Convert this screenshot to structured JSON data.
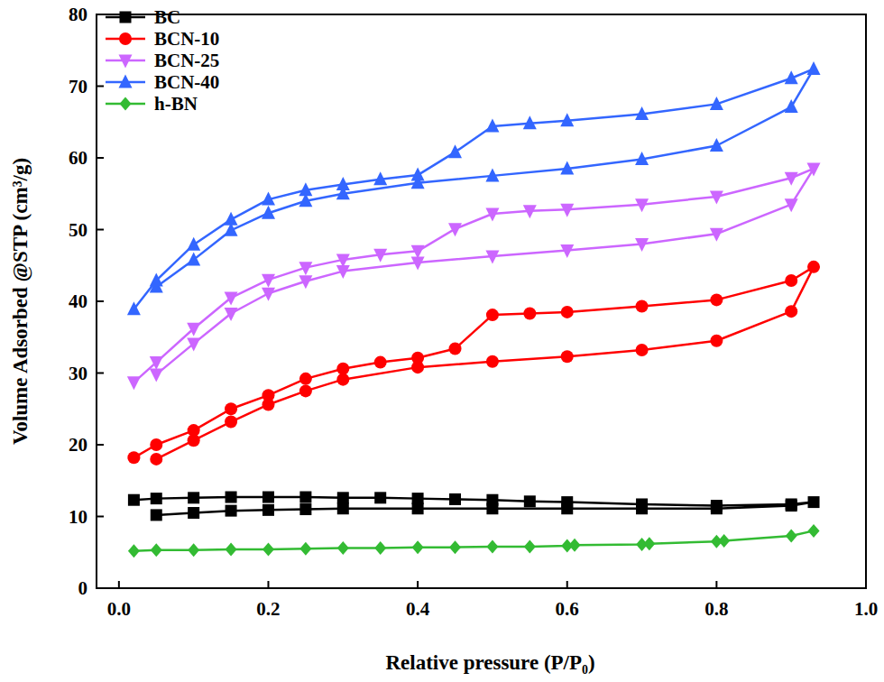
{
  "chart_data": {
    "type": "line",
    "x_label": "Relative pressure (P/P₀)",
    "y_label": "Volume Adsorbed @STP (cm³/g)",
    "xlim": [
      -0.03,
      1.0
    ],
    "ylim": [
      0,
      80
    ],
    "xticks": [
      {
        "value": 0.0,
        "label": "0.0"
      },
      0.2,
      0.4,
      0.6,
      0.8,
      {
        "value": 1.0,
        "label": "1.0"
      }
    ],
    "yticks": [
      0,
      10,
      20,
      30,
      40,
      50,
      60,
      70,
      80
    ],
    "grid": false,
    "legend": "upper left",
    "series": [
      {
        "name": "BC",
        "color": "#000000",
        "marker": "square",
        "x": [
          0.05,
          0.1,
          0.15,
          0.2,
          0.25,
          0.3,
          0.4,
          0.5,
          0.6,
          0.7,
          0.8,
          0.9,
          0.93,
          0.9,
          0.8,
          0.7,
          0.6,
          0.55,
          0.5,
          0.45,
          0.4,
          0.35,
          0.3,
          0.25,
          0.2,
          0.15,
          0.1,
          0.05,
          0.02
        ],
        "values": [
          10.2,
          10.5,
          10.8,
          10.9,
          11.0,
          11.1,
          11.1,
          11.1,
          11.1,
          11.1,
          11.1,
          11.5,
          12.0,
          11.7,
          11.5,
          11.7,
          12.0,
          12.1,
          12.3,
          12.4,
          12.5,
          12.6,
          12.6,
          12.7,
          12.7,
          12.7,
          12.6,
          12.5,
          12.3
        ]
      },
      {
        "name": "BCN-10",
        "color": "#ff0000",
        "marker": "circle",
        "x": [
          0.05,
          0.1,
          0.15,
          0.2,
          0.25,
          0.3,
          0.4,
          0.5,
          0.6,
          0.7,
          0.8,
          0.9,
          0.93,
          0.9,
          0.8,
          0.7,
          0.6,
          0.55,
          0.5,
          0.45,
          0.4,
          0.35,
          0.3,
          0.25,
          0.2,
          0.15,
          0.1,
          0.05,
          0.02
        ],
        "values": [
          18.0,
          20.6,
          23.2,
          25.6,
          27.5,
          29.1,
          30.8,
          31.6,
          32.3,
          33.2,
          34.5,
          38.6,
          44.8,
          42.9,
          40.2,
          39.3,
          38.5,
          38.3,
          38.1,
          33.4,
          32.1,
          31.5,
          30.6,
          29.2,
          26.9,
          25.0,
          22.0,
          20.0,
          18.2
        ]
      },
      {
        "name": "BCN-25",
        "color": "#cc66ff",
        "marker": "triangle-down",
        "x": [
          0.05,
          0.1,
          0.15,
          0.2,
          0.25,
          0.3,
          0.4,
          0.5,
          0.6,
          0.7,
          0.8,
          0.9,
          0.93,
          0.9,
          0.8,
          0.7,
          0.6,
          0.55,
          0.5,
          0.45,
          0.4,
          0.35,
          0.3,
          0.25,
          0.2,
          0.15,
          0.1,
          0.05,
          0.02
        ],
        "values": [
          29.8,
          34.1,
          38.3,
          41.1,
          42.8,
          44.2,
          45.4,
          46.3,
          47.1,
          48.0,
          49.4,
          53.5,
          58.5,
          57.2,
          54.6,
          53.5,
          52.8,
          52.6,
          52.2,
          50.1,
          47.0,
          46.5,
          45.8,
          44.7,
          43.0,
          40.5,
          36.2,
          31.5,
          28.7
        ]
      },
      {
        "name": "BCN-40",
        "color": "#3366ff",
        "marker": "triangle",
        "x": [
          0.05,
          0.1,
          0.15,
          0.2,
          0.25,
          0.3,
          0.4,
          0.5,
          0.6,
          0.7,
          0.8,
          0.9,
          0.93,
          0.9,
          0.8,
          0.7,
          0.6,
          0.55,
          0.5,
          0.45,
          0.4,
          0.35,
          0.3,
          0.25,
          0.2,
          0.15,
          0.1,
          0.05,
          0.02
        ],
        "values": [
          42.0,
          45.8,
          49.9,
          52.3,
          54.0,
          55.0,
          56.5,
          57.5,
          58.5,
          59.8,
          61.7,
          67.1,
          72.4,
          71.1,
          67.5,
          66.1,
          65.2,
          64.8,
          64.4,
          60.8,
          57.6,
          57.0,
          56.3,
          55.5,
          54.2,
          51.4,
          47.9,
          42.9,
          38.9
        ]
      },
      {
        "name": "h-BN",
        "color": "#33bb33",
        "marker": "diamond",
        "x": [
          0.02,
          0.05,
          0.1,
          0.15,
          0.2,
          0.25,
          0.3,
          0.35,
          0.4,
          0.45,
          0.5,
          0.55,
          0.6,
          0.61,
          0.7,
          0.71,
          0.8,
          0.81,
          0.9,
          0.93
        ],
        "values": [
          5.2,
          5.3,
          5.3,
          5.4,
          5.4,
          5.5,
          5.6,
          5.6,
          5.7,
          5.7,
          5.8,
          5.8,
          5.9,
          6.0,
          6.1,
          6.2,
          6.5,
          6.6,
          7.3,
          8.0
        ]
      }
    ]
  }
}
